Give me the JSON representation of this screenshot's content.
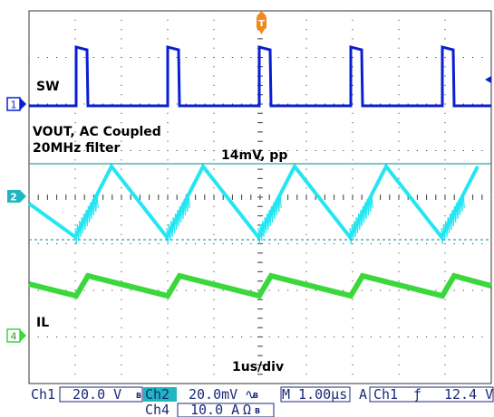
{
  "annotations": {
    "sw": "SW",
    "vout_line1": "VOUT, AC Coupled",
    "vout_line2": "20MHz filter",
    "pp": "14mV, pp",
    "il": "IL",
    "timebase": "1us/div"
  },
  "channel_markers": {
    "ch1": "1",
    "ch2": "2",
    "ch4": "4",
    "trigger": "T"
  },
  "status_bar": {
    "ch1_label": "Ch1",
    "ch1_scale": "20.0 V",
    "bw_mark_1": "B",
    "ch2_label": "Ch2",
    "ch2_scale": "20.0mV",
    "ac_coupling_symbol": "∿",
    "bw_mark_2": "B",
    "ch4_label": "Ch4",
    "ch4_scale": "10.0 A",
    "ohm_symbol": "Ω",
    "bw_mark_3": "B",
    "horizontal": "M 1.00µs",
    "acq_mode": "A",
    "trig_source": "Ch1",
    "trig_slope_symbol": "ƒ",
    "trig_level": "12.4 V"
  },
  "colors": {
    "ch1": "#0a1ed2",
    "ch2": "#24e6f2",
    "ch4": "#3ad83a",
    "trigger": "#f08a1e",
    "grid": "#333333",
    "status_text": "#1b2a78",
    "badge_ch2": "#1fb6c0"
  }
}
